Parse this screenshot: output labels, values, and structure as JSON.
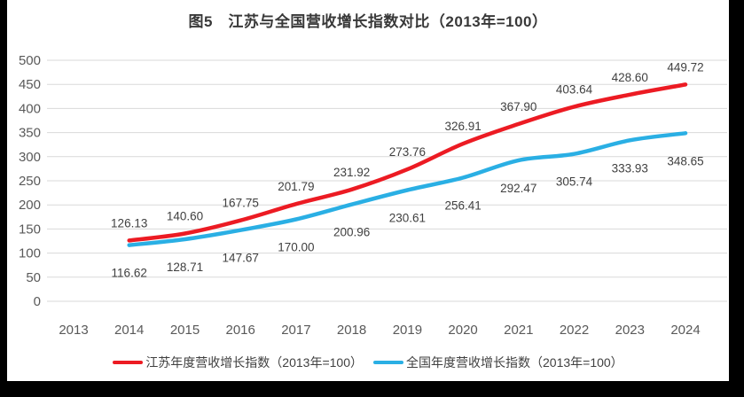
{
  "colors": {
    "background": "#000000",
    "canvas": "#ffffff",
    "grid": "#d9d9d9",
    "axis_text": "#595959",
    "label_text": "#404040",
    "title_text": "#383838",
    "series_jiangsu": "#ec1b23",
    "series_national": "#2aafe4"
  },
  "chart_data": {
    "type": "line",
    "title": "图5　江苏与全国营收增长指数对比（2013年=100）",
    "xlabel": "",
    "ylabel": "",
    "categories": [
      "2013",
      "2014",
      "2015",
      "2016",
      "2017",
      "2018",
      "2019",
      "2020",
      "2021",
      "2022",
      "2023",
      "2024"
    ],
    "yticks": [
      0,
      50,
      100,
      150,
      200,
      250,
      300,
      350,
      400,
      450,
      500
    ],
    "ylim": [
      0,
      500
    ],
    "grid": true,
    "legend_position": "bottom",
    "series": [
      {
        "name": "江苏年度营收增长指数（2013年=100）",
        "color": "#ec1b23",
        "label_position": "above",
        "values": [
          null,
          126.13,
          140.6,
          167.75,
          201.79,
          231.92,
          273.76,
          326.91,
          367.9,
          403.64,
          428.6,
          449.72
        ],
        "labels": [
          null,
          "126.13",
          "140.60",
          "167.75",
          "201.79",
          "231.92",
          "273.76",
          "326.91",
          "367.90",
          "403.64",
          "428.60",
          "449.72"
        ]
      },
      {
        "name": "全国年度营收增长指数（2013年=100）",
        "color": "#2aafe4",
        "label_position": "below",
        "values": [
          null,
          116.62,
          128.71,
          147.67,
          170.0,
          200.96,
          230.61,
          256.41,
          292.47,
          305.74,
          333.93,
          348.65
        ],
        "labels": [
          null,
          "116.62",
          "128.71",
          "147.67",
          "170.00",
          "200.96",
          "230.61",
          "256.41",
          "292.47",
          "305.74",
          "333.93",
          "348.65"
        ]
      }
    ]
  }
}
